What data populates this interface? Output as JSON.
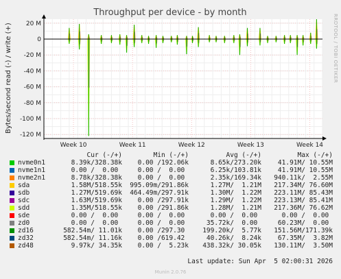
{
  "chart_data": {
    "type": "area",
    "title": "Throughput per device - by month",
    "ylabel": "Bytes/second read (-) / write (+)",
    "side_label": "RRDTOOL / TOBI OETIKER",
    "ylim": [
      -125000000,
      25000000
    ],
    "yticks": [
      {
        "v": 20000000,
        "label": "20 M"
      },
      {
        "v": 0,
        "label": "0"
      },
      {
        "v": -20000000,
        "label": "-20 M"
      },
      {
        "v": -40000000,
        "label": "-40 M"
      },
      {
        "v": -60000000,
        "label": "-60 M"
      },
      {
        "v": -80000000,
        "label": "-80 M"
      },
      {
        "v": -100000000,
        "label": "-100 M"
      },
      {
        "v": -120000000,
        "label": "-120 M"
      }
    ],
    "xlim": [
      0,
      33
    ],
    "xticks": [
      {
        "v": 3.5,
        "label": "Week 10"
      },
      {
        "v": 10.5,
        "label": "Week 11"
      },
      {
        "v": 17.5,
        "label": "Week 12"
      },
      {
        "v": 24.5,
        "label": "Week 13"
      },
      {
        "v": 31.5,
        "label": "Week 14"
      }
    ],
    "x_unit": "days since start of graph",
    "spikes": [
      {
        "x": 3.0,
        "w": 14,
        "r": 6
      },
      {
        "x": 4.2,
        "w": 19,
        "r": 13
      },
      {
        "x": 5.3,
        "w": 6,
        "r": 122
      },
      {
        "x": 6.8,
        "w": 5,
        "r": 6
      },
      {
        "x": 8.0,
        "w": 5,
        "r": 5
      },
      {
        "x": 9.0,
        "w": 6,
        "r": 7
      },
      {
        "x": 9.8,
        "w": 5,
        "r": 17
      },
      {
        "x": 10.7,
        "w": 18,
        "r": 10
      },
      {
        "x": 11.6,
        "w": 5,
        "r": 5
      },
      {
        "x": 12.4,
        "w": 4,
        "r": 6
      },
      {
        "x": 13.3,
        "w": 5,
        "r": 11
      },
      {
        "x": 14.1,
        "w": 4,
        "r": 5
      },
      {
        "x": 15.1,
        "w": 4,
        "r": 4
      },
      {
        "x": 15.8,
        "w": 5,
        "r": 7
      },
      {
        "x": 16.9,
        "w": 4,
        "r": 19
      },
      {
        "x": 17.6,
        "w": 4,
        "r": 5
      },
      {
        "x": 18.3,
        "w": 15,
        "r": 10
      },
      {
        "x": 19.6,
        "w": 5,
        "r": 4
      },
      {
        "x": 20.4,
        "w": 4,
        "r": 4
      },
      {
        "x": 21.4,
        "w": 4,
        "r": 5
      },
      {
        "x": 22.5,
        "w": 5,
        "r": 5
      },
      {
        "x": 23.2,
        "w": 6,
        "r": 20
      },
      {
        "x": 24.1,
        "w": 14,
        "r": 9
      },
      {
        "x": 25.6,
        "w": 14,
        "r": 8
      },
      {
        "x": 26.5,
        "w": 4,
        "r": 5
      },
      {
        "x": 27.5,
        "w": 4,
        "r": 4
      },
      {
        "x": 28.5,
        "w": 5,
        "r": 6
      },
      {
        "x": 29.2,
        "w": 5,
        "r": 5
      },
      {
        "x": 30.0,
        "w": 5,
        "r": 20
      },
      {
        "x": 30.7,
        "w": 5,
        "r": 8
      },
      {
        "x": 31.6,
        "w": 8,
        "r": 6
      },
      {
        "x": 32.3,
        "w": 25,
        "r": 12
      }
    ],
    "series": [
      {
        "name": "nvme0n1",
        "color": "#00cc00",
        "cur": "8.39k/328.38k",
        "min": "0.00 /192.06k",
        "avg": "8.65k/273.20k",
        "max": "41.91M/ 10.55M"
      },
      {
        "name": "nvme1n1",
        "color": "#0066b3",
        "cur": "0.00 /  0.00 ",
        "min": "0.00 /  0.00 ",
        "avg": "6.25k/103.81k",
        "max": "41.91M/ 10.55M"
      },
      {
        "name": "nvme2n1",
        "color": "#ff8000",
        "cur": "8.78k/328.38k",
        "min": "0.00 /  0.00 ",
        "avg": "2.35k/169.34k",
        "max": "940.11k/  2.55M"
      },
      {
        "name": "sda",
        "color": "#ffcc00",
        "cur": "1.58M/518.55k",
        "min": "995.09m/291.86k",
        "avg": "1.27M/  1.21M",
        "max": "217.34M/ 76.60M"
      },
      {
        "name": "sdb",
        "color": "#330099",
        "cur": "1.27M/519.69k",
        "min": "464.49m/297.91k",
        "avg": "1.30M/  1.22M",
        "max": "223.11M/ 85.43M"
      },
      {
        "name": "sdc",
        "color": "#990099",
        "cur": "1.63M/519.69k",
        "min": "0.00 /297.91k",
        "avg": "1.29M/  1.22M",
        "max": "223.13M/ 85.41M"
      },
      {
        "name": "sdd",
        "color": "#ccff00",
        "cur": "1.35M/518.55k",
        "min": "0.00 /291.86k",
        "avg": "1.28M/  1.21M",
        "max": "217.36M/ 76.62M"
      },
      {
        "name": "sde",
        "color": "#ff0000",
        "cur": "0.00 /  0.00 ",
        "min": "0.00 /  0.00 ",
        "avg": "0.00 /  0.00 ",
        "max": "0.00 /  0.00 "
      },
      {
        "name": "zd0",
        "color": "#808080",
        "cur": "0.00 /  0.00 ",
        "min": "0.00 /  0.00 ",
        "avg": "35.72k/  0.00 ",
        "max": "60.23M/  0.00 "
      },
      {
        "name": "zd16",
        "color": "#008f00",
        "cur": "582.54m/ 11.01k",
        "min": "0.00 /297.30 ",
        "avg": "199.20k/  5.77k",
        "max": "151.56M/171.39k"
      },
      {
        "name": "zd32",
        "color": "#00487d",
        "cur": "582.54m/ 11.16k",
        "min": "0.00 /619.42 ",
        "avg": "40.26k/  8.24k",
        "max": "67.35M/  3.82M"
      },
      {
        "name": "zd48",
        "color": "#b35a00",
        "cur": "9.97k/ 34.35k",
        "min": "0.00 /  5.23k",
        "avg": "438.32k/ 30.05k",
        "max": "130.11M/  3.50M"
      }
    ]
  },
  "legend_header": {
    "cur": "Cur (-/+)",
    "min": "Min (-/+)",
    "avg": "Avg (-/+)",
    "max": "Max (-/+)"
  },
  "footer": {
    "last_update": "Last update: Sun Apr  5 02:00:31 2026",
    "munin": "Munin 2.0.76"
  }
}
